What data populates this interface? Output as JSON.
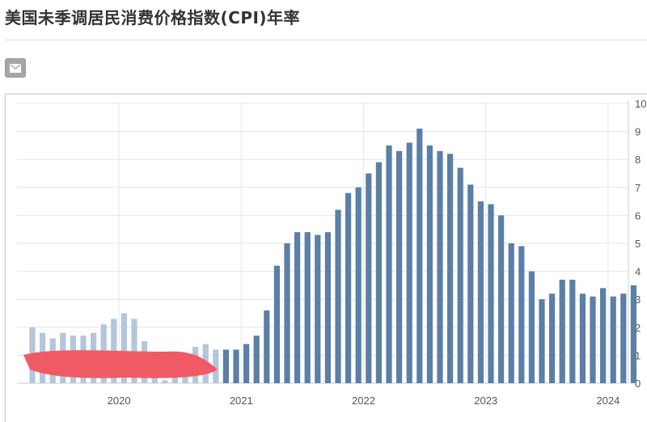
{
  "page": {
    "title": "美国未季调居民消费价格指数(CPI)年率"
  },
  "toolbar": {
    "mail_icon": "mail-icon"
  },
  "colors": {
    "bar": "#5b7fa6",
    "bar_light": "#b4c6db",
    "grid": "#e6e6e6",
    "redaction": "#f05a64"
  },
  "chart_data": {
    "type": "bar",
    "title": "",
    "xlabel": "",
    "ylabel": "",
    "ylim": [
      0,
      10
    ],
    "y_axis_position": "right",
    "yticks": [
      "0",
      "1",
      "2",
      "3",
      "4",
      "5",
      "6",
      "7",
      "8",
      "9",
      "10"
    ],
    "grid": true,
    "xtick_labels": [
      "2020",
      "2021",
      "2022",
      "2023",
      "2024"
    ],
    "series": [
      {
        "categories": [
          "2019-04",
          "2019-05",
          "2019-06",
          "2019-07",
          "2019-08",
          "2019-09",
          "2019-10",
          "2019-11",
          "2019-12",
          "2020-01",
          "2020-02",
          "2020-03",
          "2020-04",
          "2020-05",
          "2020-06",
          "2020-07",
          "2020-08",
          "2020-09",
          "2020-10"
        ],
        "values": [
          2.0,
          1.8,
          1.6,
          1.8,
          1.7,
          1.7,
          1.8,
          2.1,
          2.3,
          2.5,
          2.3,
          1.5,
          0.3,
          0.1,
          0.6,
          1.0,
          1.3,
          1.4,
          1.2
        ]
      },
      {
        "categories": [
          "2020-11",
          "2020-12",
          "2021-01",
          "2021-02",
          "2021-03",
          "2021-04",
          "2021-05",
          "2021-06",
          "2021-07",
          "2021-08",
          "2021-09",
          "2021-10",
          "2021-11",
          "2021-12",
          "2022-01",
          "2022-02",
          "2022-03",
          "2022-04",
          "2022-05",
          "2022-06",
          "2022-07",
          "2022-08",
          "2022-09",
          "2022-10",
          "2022-11",
          "2022-12",
          "2023-01",
          "2023-02",
          "2023-03",
          "2023-04",
          "2023-05",
          "2023-06",
          "2023-07",
          "2023-08",
          "2023-09",
          "2023-10",
          "2023-11",
          "2023-12",
          "2024-01",
          "2024-02",
          "2024-03"
        ],
        "values": [
          1.2,
          1.2,
          1.4,
          1.7,
          2.6,
          4.2,
          5.0,
          5.4,
          5.4,
          5.3,
          5.4,
          6.2,
          6.8,
          7.0,
          7.5,
          7.9,
          8.5,
          8.3,
          8.6,
          9.1,
          8.5,
          8.3,
          8.2,
          7.7,
          7.1,
          6.5,
          6.4,
          6.0,
          5.0,
          4.9,
          4.0,
          3.0,
          3.2,
          3.7,
          3.7,
          3.2,
          3.1,
          3.4,
          3.1,
          3.2,
          3.5
        ]
      }
    ]
  }
}
